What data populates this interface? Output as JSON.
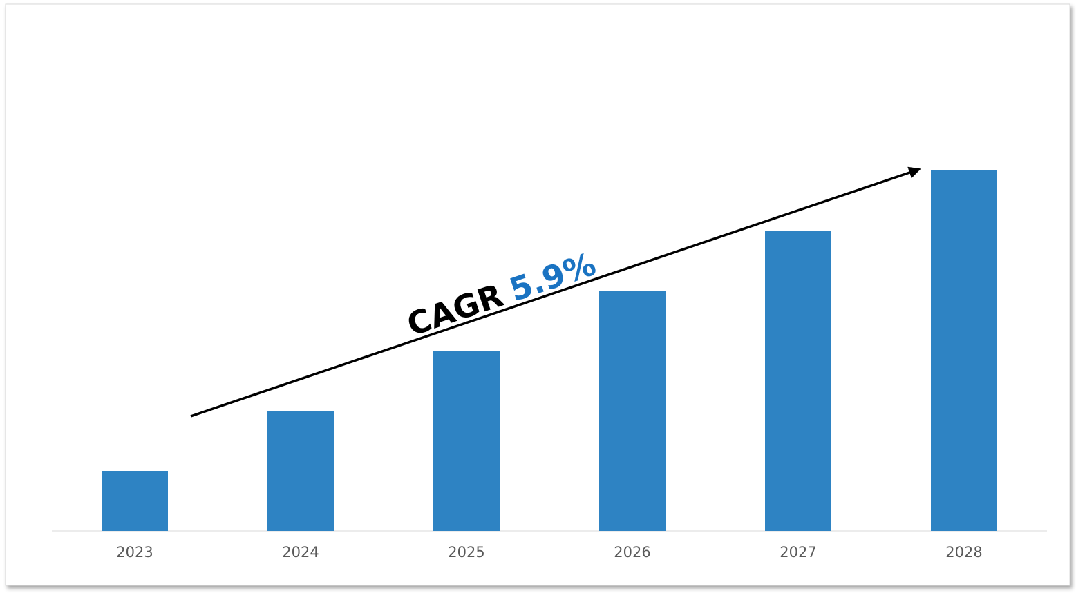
{
  "chart_data": {
    "type": "bar",
    "categories": [
      "2023",
      "2024",
      "2025",
      "2026",
      "2027",
      "2028"
    ],
    "values": [
      1,
      2,
      3,
      4,
      5,
      6
    ],
    "color": "#2e83c3",
    "ylim": [
      0,
      6
    ],
    "annotation": {
      "label": "CAGR",
      "value": "5.9%",
      "value_color": "#1a73c2"
    }
  }
}
